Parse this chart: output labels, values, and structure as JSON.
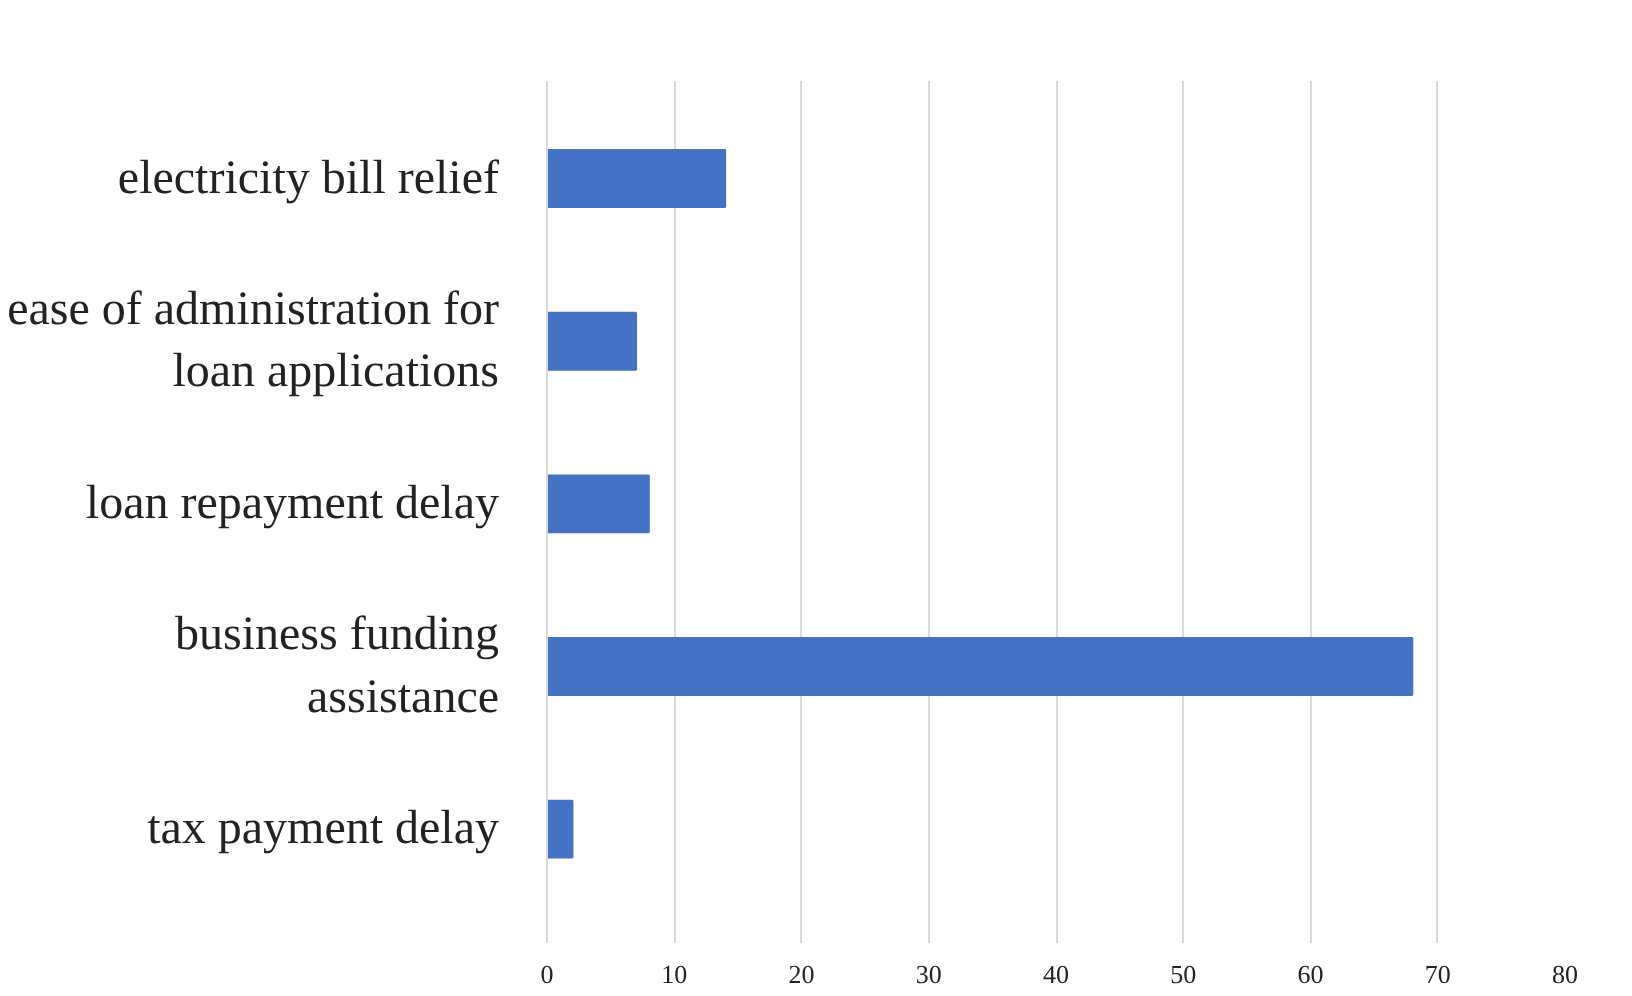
{
  "chart_data": {
    "type": "bar",
    "orientation": "horizontal",
    "categories": [
      "electricity bill relief",
      "ease of administration for loan applications",
      "loan repayment delay",
      "business funding assistance",
      "tax payment delay"
    ],
    "values": [
      14,
      7,
      8,
      68,
      2
    ],
    "color": "#4472c4",
    "xlim": [
      0,
      80
    ],
    "xticks": [
      0,
      10,
      20,
      30,
      40,
      50,
      60,
      70,
      80
    ],
    "grid": "x"
  }
}
